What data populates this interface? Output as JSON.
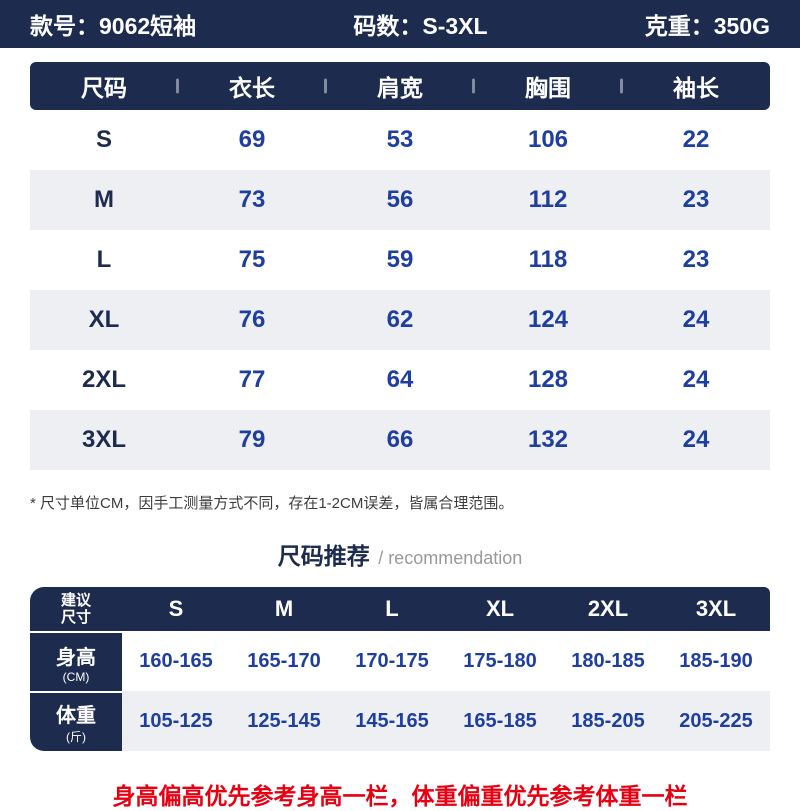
{
  "colors": {
    "navy": "#1c2b4e",
    "blue": "#1e3f9f",
    "red": "#e60012",
    "row_alt": "#edeff3"
  },
  "topbar": {
    "style": "款号：9062短袖",
    "sizes": "码数：S-3XL",
    "weight": "克重：350G"
  },
  "size_table": {
    "columns": [
      "尺码",
      "衣长",
      "肩宽",
      "胸围",
      "袖长"
    ],
    "rows": [
      {
        "size": "S",
        "values": [
          "69",
          "53",
          "106",
          "22"
        ]
      },
      {
        "size": "M",
        "values": [
          "73",
          "56",
          "112",
          "23"
        ]
      },
      {
        "size": "L",
        "values": [
          "75",
          "59",
          "118",
          "23"
        ]
      },
      {
        "size": "XL",
        "values": [
          "76",
          "62",
          "124",
          "24"
        ]
      },
      {
        "size": "2XL",
        "values": [
          "77",
          "64",
          "128",
          "24"
        ]
      },
      {
        "size": "3XL",
        "values": [
          "79",
          "66",
          "132",
          "24"
        ]
      }
    ]
  },
  "footnote": "* 尺寸单位CM，因手工测量方式不同，存在1-2CM误差，皆属合理范围。",
  "recommendation": {
    "title": "尺码推荐",
    "subtitle": "/ recommendation",
    "corner": {
      "line1": "建议",
      "line2": "尺寸"
    },
    "sizes": [
      "S",
      "M",
      "L",
      "XL",
      "2XL",
      "3XL"
    ],
    "rows": [
      {
        "label": "身高",
        "unit": "(CM)",
        "values": [
          "160-165",
          "165-170",
          "170-175",
          "175-180",
          "180-185",
          "185-190"
        ]
      },
      {
        "label": "体重",
        "unit": "(斤)",
        "values": [
          "105-125",
          "125-145",
          "145-165",
          "165-185",
          "185-205",
          "205-225"
        ]
      }
    ]
  },
  "bottom_note": "身高偏高优先参考身高一栏，体重偏重优先参考体重一栏"
}
